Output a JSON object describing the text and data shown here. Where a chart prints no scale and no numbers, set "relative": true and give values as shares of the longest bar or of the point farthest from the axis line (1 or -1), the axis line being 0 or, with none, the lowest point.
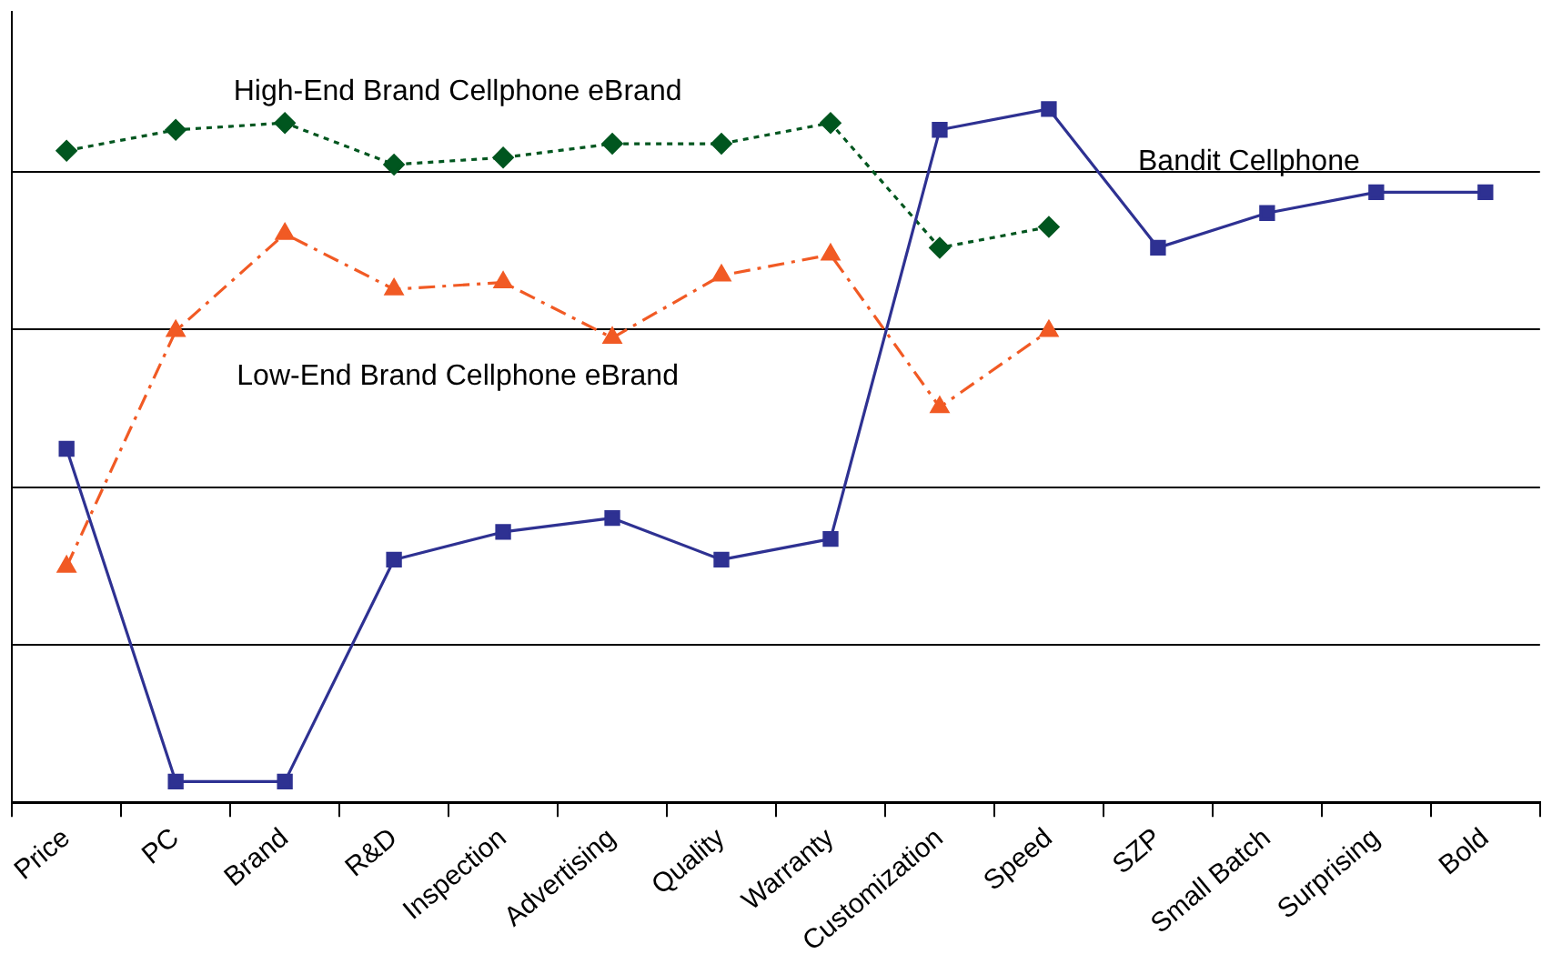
{
  "chart_data": {
    "type": "line",
    "relative": true,
    "grid": "y",
    "legend": false,
    "categories": [
      "Price",
      "PC",
      "Brand",
      "R&D",
      "Inspection",
      "Advertising",
      "Quality",
      "Warranty",
      "Customization",
      "Speed",
      "SZP",
      "Small Batch",
      "Surprising",
      "Bold"
    ],
    "series": [
      {
        "name": "Bandit Cellphone",
        "color": "#2e3192",
        "marker": "square",
        "line_style": "solid",
        "values": [
          0.51,
          0.03,
          0.03,
          0.35,
          0.39,
          0.41,
          0.35,
          0.38,
          0.97,
          1,
          0.8,
          0.85,
          0.88,
          0.88
        ]
      },
      {
        "name": "High-End Brand Cellphone eBrand",
        "color": "#00561f",
        "marker": "diamond",
        "line_style": "dotted",
        "values": [
          0.94,
          0.97,
          0.98,
          0.92,
          0.93,
          0.95,
          0.95,
          0.98,
          0.8,
          0.83,
          null,
          null,
          null,
          null
        ]
      },
      {
        "name": "Low-End Brand Cellphone eBrand",
        "color": "#f15a24",
        "marker": "triangle",
        "line_style": "dashed",
        "values": [
          0.34,
          0.68,
          0.82,
          0.74,
          0.75,
          0.67,
          0.76,
          0.79,
          0.57,
          0.68,
          null,
          null,
          null,
          null
        ]
      }
    ]
  }
}
